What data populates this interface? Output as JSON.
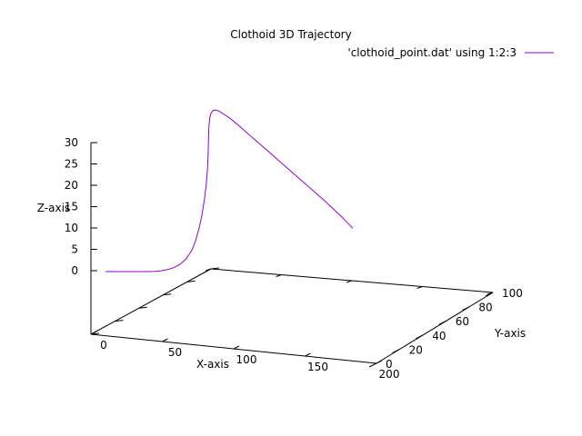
{
  "chart_data": {
    "type": "line",
    "title": "Clothoid 3D Trajectory",
    "xlabel": "X-axis",
    "ylabel": "Y-axis",
    "zlabel": "Z-axis",
    "xlim": [
      0,
      200
    ],
    "ylim": [
      0,
      100
    ],
    "zlim": [
      0,
      30
    ],
    "x_ticks": [
      "0",
      "50",
      "100",
      "150",
      "200"
    ],
    "y_ticks": [
      "0",
      "20",
      "40",
      "60",
      "80",
      "100"
    ],
    "z_ticks": [
      "0",
      "5",
      "10",
      "15",
      "20",
      "25",
      "30"
    ],
    "legend_position": "top-right",
    "grid": false,
    "series": [
      {
        "name": "'clothoid_point.dat' using 1:2:3",
        "color": "#9400d3",
        "points": [
          [
            0,
            0,
            0
          ],
          [
            5,
            0,
            0
          ],
          [
            10,
            0,
            0
          ],
          [
            15,
            0,
            0
          ],
          [
            20,
            0,
            0
          ],
          [
            25,
            0.1,
            0
          ],
          [
            30,
            0.2,
            0
          ],
          [
            35,
            0.4,
            0
          ],
          [
            40,
            0.8,
            0.05
          ],
          [
            45,
            1.3,
            0.15
          ],
          [
            50,
            2.1,
            0.35
          ],
          [
            55,
            3.3,
            0.7
          ],
          [
            60,
            5,
            1.3
          ],
          [
            65,
            7.4,
            2.3
          ],
          [
            70,
            10.6,
            4
          ],
          [
            73,
            13,
            5.8
          ],
          [
            76,
            16,
            8.3
          ],
          [
            78,
            18.5,
            10.5
          ],
          [
            80,
            21.5,
            13.3
          ],
          [
            81.5,
            24.5,
            16
          ],
          [
            82.5,
            28,
            19
          ],
          [
            83,
            31.5,
            21.8
          ],
          [
            83.3,
            35.5,
            24.5
          ],
          [
            83.6,
            39.5,
            26.6
          ],
          [
            84.2,
            43.5,
            28.2
          ],
          [
            85.2,
            47.5,
            29.2
          ],
          [
            86.8,
            51.5,
            29.7
          ],
          [
            89,
            55,
            29.8
          ],
          [
            92,
            58.5,
            29.6
          ],
          [
            96,
            62,
            29
          ],
          [
            101,
            65.5,
            28.2
          ],
          [
            107,
            69,
            27.1
          ],
          [
            114,
            72.5,
            25.7
          ],
          [
            122,
            76,
            24.1
          ],
          [
            131,
            79.5,
            22.3
          ],
          [
            141,
            83,
            20.3
          ],
          [
            152,
            86.5,
            18.1
          ],
          [
            164,
            90,
            15.7
          ],
          [
            177,
            93.5,
            13.1
          ],
          [
            190,
            97,
            10.3
          ],
          [
            200,
            100,
            8
          ]
        ]
      }
    ]
  }
}
